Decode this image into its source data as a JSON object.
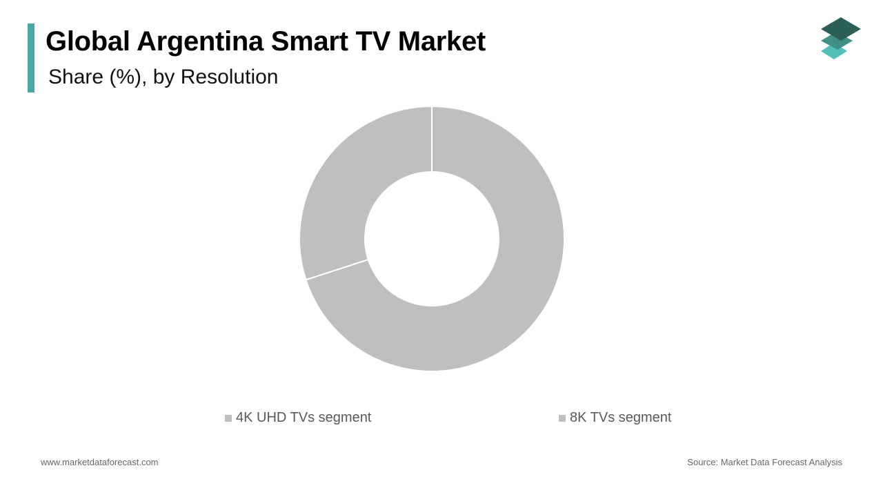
{
  "header": {
    "title": "Global Argentina Smart TV Market",
    "subtitle": "Share (%), by Resolution",
    "accent_color": "#4aa8a6",
    "logo_icon": "stacked-layers-logo-icon"
  },
  "chart_data": {
    "type": "pie",
    "style": "donut",
    "categories": [
      "4K UHD TVs segment",
      "8K TVs segment"
    ],
    "values": [
      70,
      30
    ],
    "colors": [
      "#bfbfbf",
      "#bfbfbf"
    ],
    "legend": "bottom"
  },
  "footer": {
    "website": "www.marketdataforecast.com",
    "source": "Source: Market Data Forecast Analysis"
  }
}
